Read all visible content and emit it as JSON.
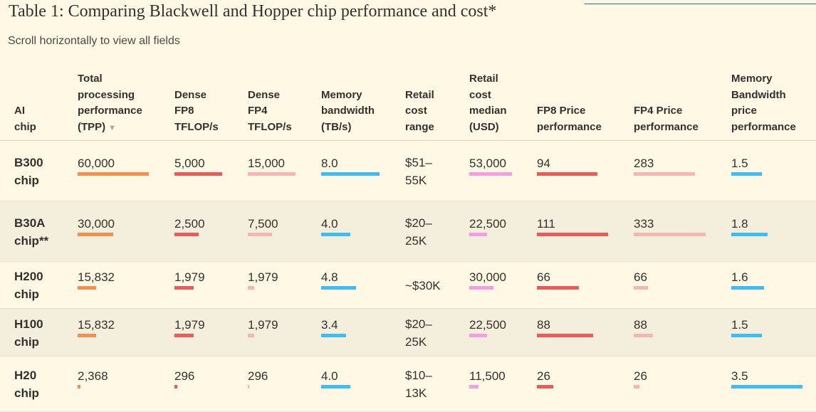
{
  "title": "Table 1: Comparing Blackwell and Hopper chip performance and cost*",
  "subtitle": "Scroll horizontally to view all fields",
  "colors": {
    "tpp": "#f28f52",
    "fp8": "#ec5b5b",
    "fp4": "#f6b6b0",
    "memory": "#3fbdf2",
    "cost": "#f49ee2",
    "fp8_price": "#ec5b5b",
    "fp4_price": "#f6b6b0",
    "bandwidth_price": "#3fbdf2"
  },
  "columns": {
    "chip": [
      "AI",
      "chip"
    ],
    "tpp": [
      "Total",
      "processing",
      "performance",
      "(TPP)"
    ],
    "fp8": [
      "Dense",
      "FP8",
      "TFLOP/s"
    ],
    "fp4": [
      "Dense",
      "FP4",
      "TFLOP/s"
    ],
    "memory": [
      "Memory",
      "bandwidth",
      "(TB/s)"
    ],
    "range": [
      "Retail",
      "cost",
      "range"
    ],
    "median": [
      "Retail",
      "cost",
      "median",
      "(USD)"
    ],
    "fp8_price": [
      "FP8 Price",
      "performance"
    ],
    "fp4_price": [
      "FP4 Price",
      "performance"
    ],
    "bw_price": [
      "Memory",
      "Bandwidth",
      "price",
      "performance"
    ]
  },
  "rows": [
    {
      "chip": [
        "B300",
        "chip"
      ],
      "tpp": "60,000",
      "tpp_v": 60000,
      "fp8": "5,000",
      "fp8_v": 5000,
      "fp4": "15,000",
      "fp4_v": 15000,
      "memory": "8.0",
      "memory_v": 8.0,
      "range": [
        "$51–",
        "55K"
      ],
      "median": "53,000",
      "median_v": 53000,
      "fp8_price": "94",
      "fp8_price_v": 94,
      "fp4_price": "283",
      "fp4_price_v": 283,
      "bw_price": "1.5",
      "bw_price_v": 1.5
    },
    {
      "chip": [
        "B30A",
        "chip**"
      ],
      "tpp": "30,000",
      "tpp_v": 30000,
      "fp8": "2,500",
      "fp8_v": 2500,
      "fp4": "7,500",
      "fp4_v": 7500,
      "memory": "4.0",
      "memory_v": 4.0,
      "range": [
        "$20–",
        "25K"
      ],
      "median": "22,500",
      "median_v": 22500,
      "fp8_price": "111",
      "fp8_price_v": 111,
      "fp4_price": "333",
      "fp4_price_v": 333,
      "bw_price": "1.8",
      "bw_price_v": 1.8
    },
    {
      "chip": [
        "H200",
        "chip"
      ],
      "tpp": "15,832",
      "tpp_v": 15832,
      "fp8": "1,979",
      "fp8_v": 1979,
      "fp4": "1,979",
      "fp4_v": 1979,
      "memory": "4.8",
      "memory_v": 4.8,
      "range": [
        "~$30K"
      ],
      "median": "30,000",
      "median_v": 30000,
      "fp8_price": "66",
      "fp8_price_v": 66,
      "fp4_price": "66",
      "fp4_price_v": 66,
      "bw_price": "1.6",
      "bw_price_v": 1.6
    },
    {
      "chip": [
        "H100",
        "chip"
      ],
      "tpp": "15,832",
      "tpp_v": 15832,
      "fp8": "1,979",
      "fp8_v": 1979,
      "fp4": "1,979",
      "fp4_v": 1979,
      "memory": "3.4",
      "memory_v": 3.4,
      "range": [
        "$20–",
        "25K"
      ],
      "median": "22,500",
      "median_v": 22500,
      "fp8_price": "88",
      "fp8_price_v": 88,
      "fp4_price": "88",
      "fp4_price_v": 88,
      "bw_price": "1.5",
      "bw_price_v": 1.5
    },
    {
      "chip": [
        "H20",
        "chip"
      ],
      "tpp": "2,368",
      "tpp_v": 2368,
      "fp8": "296",
      "fp8_v": 296,
      "fp4": "296",
      "fp4_v": 296,
      "memory": "4.0",
      "memory_v": 4.0,
      "range": [
        "$10–",
        "13K"
      ],
      "median": "11,500",
      "median_v": 11500,
      "fp8_price": "26",
      "fp8_price_v": 26,
      "fp4_price": "26",
      "fp4_price_v": 26,
      "bw_price": "3.5",
      "bw_price_v": 3.5
    }
  ],
  "scale_max": {
    "tpp": 60000,
    "fp8": 5000,
    "fp4": 15000,
    "memory": 8.0,
    "median": 53000,
    "fp8_price": 111,
    "fp4_price": 333,
    "bw_price": 3.5
  }
}
